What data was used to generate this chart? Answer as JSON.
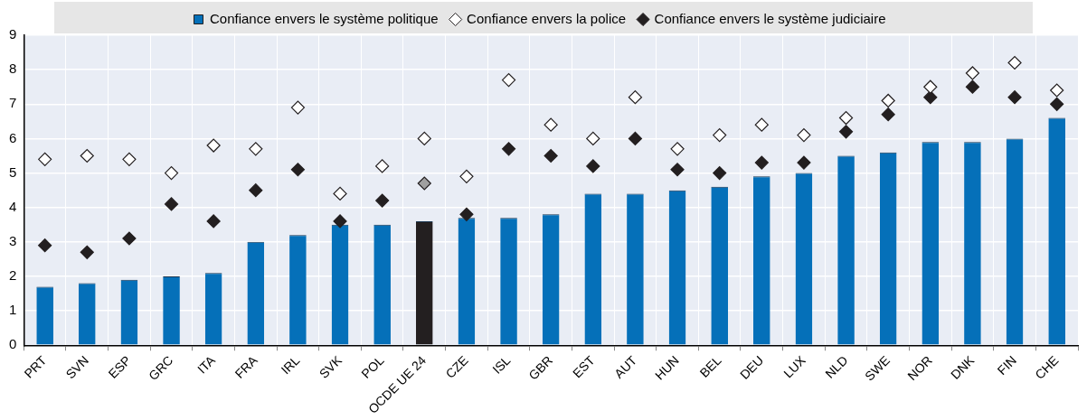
{
  "chart_data": {
    "type": "bar",
    "categories": [
      "PRT",
      "SVN",
      "ESP",
      "GRC",
      "ITA",
      "FRA",
      "IRL",
      "SVK",
      "POL",
      "OCDE UE 24",
      "CZE",
      "ISL",
      "GBR",
      "EST",
      "AUT",
      "HUN",
      "BEL",
      "DEU",
      "LUX",
      "NLD",
      "SWE",
      "NOR",
      "DNK",
      "FIN",
      "CHE"
    ],
    "series": [
      {
        "name": "Confiance envers le système politique",
        "color": "#0570b9",
        "colors": [
          "#0570b9",
          "#0570b9",
          "#0570b9",
          "#0570b9",
          "#0570b9",
          "#0570b9",
          "#0570b9",
          "#0570b9",
          "#0570b9",
          "#231f20",
          "#0570b9",
          "#0570b9",
          "#0570b9",
          "#0570b9",
          "#0570b9",
          "#0570b9",
          "#0570b9",
          "#0570b9",
          "#0570b9",
          "#0570b9",
          "#0570b9",
          "#0570b9",
          "#0570b9",
          "#0570b9",
          "#0570b9"
        ],
        "values": [
          1.7,
          1.8,
          1.9,
          2.0,
          2.1,
          3.0,
          3.2,
          3.5,
          3.5,
          3.6,
          3.7,
          3.7,
          3.8,
          4.4,
          4.4,
          4.5,
          4.6,
          4.9,
          5.0,
          5.5,
          5.6,
          5.9,
          5.9,
          6.0,
          6.6
        ]
      },
      {
        "name": "Confiance envers la police",
        "type": "scatter",
        "color": "#ffffff",
        "x": [
          "PRT",
          "SVN",
          "ESP",
          "GRC",
          "ITA",
          "FRA",
          "IRL",
          "SVK",
          "POL",
          "OCDE UE 24",
          "CZE",
          "ISL",
          "GBR",
          "EST",
          "AUT",
          "HUN",
          "BEL",
          "DEU",
          "LUX",
          "NLD",
          "SWE",
          "NOR",
          "DNK",
          "FIN",
          "CHE"
        ],
        "values": [
          5.4,
          5.5,
          5.4,
          5.0,
          5.8,
          5.7,
          6.9,
          4.4,
          5.2,
          6.0,
          4.9,
          7.7,
          6.4,
          6.0,
          7.2,
          5.7,
          6.1,
          6.4,
          6.1,
          6.6,
          7.1,
          7.5,
          7.9,
          8.2,
          7.4
        ]
      },
      {
        "name": "Confiance envers le système judiciaire",
        "type": "scatter",
        "color": "#231f20",
        "colors": [
          "#231f20",
          "#231f20",
          "#231f20",
          "#231f20",
          "#231f20",
          "#231f20",
          "#231f20",
          "#231f20",
          "#231f20",
          "#a0a0a0",
          "#231f20",
          "#231f20",
          "#231f20",
          "#231f20",
          "#231f20",
          "#231f20",
          "#231f20",
          "#231f20",
          "#231f20",
          "#231f20",
          "#231f20",
          "#231f20",
          "#231f20",
          "#231f20",
          "#231f20"
        ],
        "x": [
          "PRT",
          "SVN",
          "ESP",
          "GRC",
          "ITA",
          "FRA",
          "IRL",
          "SVK",
          "POL",
          "OCDE UE 24",
          "CZE",
          "ISL",
          "GBR",
          "EST",
          "AUT",
          "HUN",
          "BEL",
          "DEU",
          "LUX",
          "NLD",
          "SWE",
          "NOR",
          "DNK",
          "FIN",
          "CHE"
        ],
        "values": [
          2.9,
          2.7,
          3.1,
          4.1,
          3.6,
          4.5,
          5.1,
          3.6,
          4.2,
          4.7,
          3.8,
          5.7,
          5.5,
          5.2,
          6.0,
          5.1,
          5.0,
          5.3,
          5.3,
          6.2,
          6.7,
          7.2,
          7.5,
          7.2,
          7.0
        ]
      }
    ],
    "ylim": [
      0,
      9
    ],
    "yticks": [
      0,
      1,
      2,
      3,
      4,
      5,
      6,
      7,
      8,
      9
    ],
    "grid": true,
    "legend": "top",
    "marker": "diamond"
  }
}
